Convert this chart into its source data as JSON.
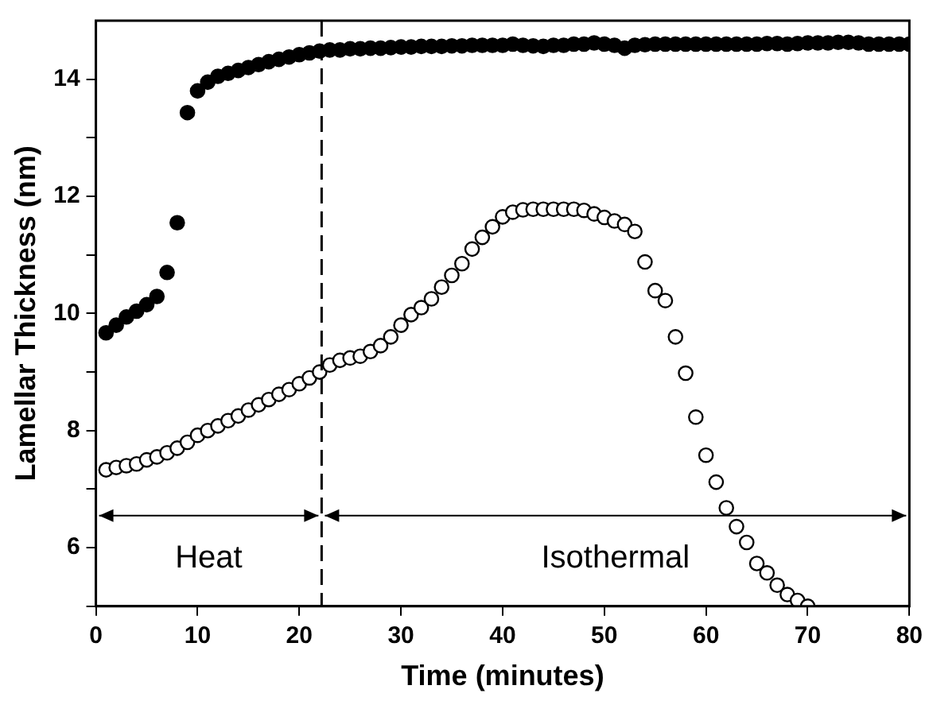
{
  "chart_data": {
    "type": "scatter",
    "xlabel": "Time (minutes)",
    "ylabel": "Lamellar Thickness (nm)",
    "xlim": [
      0,
      80
    ],
    "xticks": [
      0,
      10,
      20,
      30,
      40,
      50,
      60,
      70,
      80
    ],
    "ylim": [
      5,
      15
    ],
    "yticks": [
      {
        "value": 5,
        "label": null
      },
      6,
      {
        "value": 7,
        "label": null
      },
      8,
      {
        "value": 9,
        "label": null
      },
      10,
      {
        "value": 11,
        "label": null
      },
      12,
      {
        "value": 13,
        "label": null
      },
      14
    ],
    "marker": "circle",
    "grid": false,
    "legend": false,
    "series": [
      {
        "color": "#000000",
        "x": [
          1,
          2,
          3,
          4,
          5,
          6,
          7,
          8,
          9,
          10,
          11,
          12,
          13,
          14,
          15,
          16,
          17,
          18,
          19,
          20,
          21,
          22,
          23,
          24,
          25,
          26,
          27,
          28,
          29,
          30,
          31,
          32,
          33,
          34,
          35,
          36,
          37,
          38,
          39,
          40,
          41,
          42,
          43,
          44,
          45,
          46,
          47,
          48,
          49,
          50,
          51,
          52,
          53,
          54,
          55,
          56,
          57,
          58,
          59,
          60,
          61,
          62,
          63,
          64,
          65,
          66,
          67,
          68,
          69,
          70,
          71,
          72,
          73,
          74,
          75,
          76,
          77,
          78,
          79,
          80
        ],
        "values": [
          9.67,
          9.8,
          9.94,
          10.04,
          10.15,
          10.29,
          10.7,
          11.55,
          13.43,
          13.8,
          13.95,
          14.05,
          14.1,
          14.15,
          14.2,
          14.25,
          14.3,
          14.34,
          14.38,
          14.42,
          14.45,
          14.48,
          14.5,
          14.5,
          14.52,
          14.52,
          14.53,
          14.53,
          14.54,
          14.55,
          14.55,
          14.56,
          14.56,
          14.56,
          14.57,
          14.57,
          14.58,
          14.58,
          14.58,
          14.58,
          14.6,
          14.58,
          14.57,
          14.56,
          14.58,
          14.58,
          14.6,
          14.6,
          14.62,
          14.6,
          14.58,
          14.53,
          14.58,
          14.59,
          14.6,
          14.6,
          14.6,
          14.6,
          14.6,
          14.6,
          14.6,
          14.6,
          14.6,
          14.6,
          14.6,
          14.61,
          14.61,
          14.6,
          14.61,
          14.62,
          14.62,
          14.62,
          14.63,
          14.63,
          14.62,
          14.6,
          14.6,
          14.6,
          14.6,
          14.6
        ]
      },
      {
        "color": "#000000",
        "x": [
          1,
          2,
          3,
          4,
          5,
          6,
          7,
          8,
          9,
          10,
          11,
          12,
          13,
          14,
          15,
          16,
          17,
          18,
          19,
          20,
          21,
          22,
          23,
          24,
          25,
          26,
          27,
          28,
          29,
          30,
          31,
          32,
          33,
          34,
          35,
          36,
          37,
          38,
          39,
          40,
          41,
          42,
          43,
          44,
          45,
          46,
          47,
          48,
          49,
          50,
          51,
          52,
          53,
          54,
          55,
          56,
          57,
          58,
          59,
          60,
          61,
          62,
          63,
          64,
          65,
          66,
          67,
          68,
          69,
          70
        ],
        "values": [
          7.33,
          7.37,
          7.4,
          7.43,
          7.5,
          7.55,
          7.62,
          7.7,
          7.8,
          7.92,
          8.0,
          8.08,
          8.17,
          8.25,
          8.35,
          8.44,
          8.53,
          8.62,
          8.7,
          8.8,
          8.9,
          9.0,
          9.12,
          9.2,
          9.24,
          9.27,
          9.35,
          9.45,
          9.6,
          9.8,
          9.98,
          10.1,
          10.25,
          10.45,
          10.65,
          10.85,
          11.1,
          11.3,
          11.48,
          11.65,
          11.73,
          11.77,
          11.78,
          11.78,
          11.78,
          11.78,
          11.78,
          11.76,
          11.7,
          11.64,
          11.58,
          11.52,
          11.4,
          10.88,
          10.39,
          10.22,
          9.6,
          8.98,
          8.23,
          7.58,
          7.12,
          6.68,
          6.36,
          6.09,
          5.73,
          5.57,
          5.36,
          5.2,
          5.1,
          5.0
        ]
      }
    ],
    "ref_lines": [
      {
        "axis": "x",
        "value": 22.2,
        "color": "#000000",
        "line_style": "dashed"
      }
    ],
    "annotations": [
      "Heat",
      "Isothermal"
    ]
  }
}
